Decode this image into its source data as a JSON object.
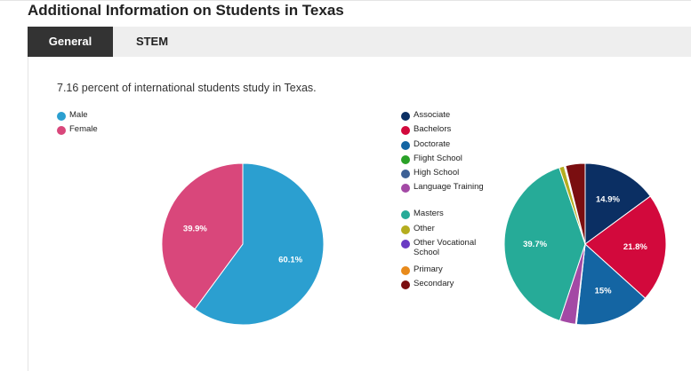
{
  "header": {
    "title": "Additional Information on Students in Texas"
  },
  "tabs": [
    {
      "label": "General",
      "active": true
    },
    {
      "label": "STEM",
      "active": false
    }
  ],
  "summary": "7.16 percent of international students study in Texas.",
  "chart_data": [
    {
      "type": "pie",
      "categories": [
        "Male",
        "Female"
      ],
      "values": [
        60.1,
        39.9
      ],
      "data_labels": [
        "60.1%",
        "39.9%"
      ],
      "colors": [
        "#2b9fd0",
        "#d9477b"
      ],
      "legend": "top-left"
    },
    {
      "type": "pie",
      "categories": [
        "Associate",
        "Bachelors",
        "Doctorate",
        "Flight School",
        "High School",
        "Language Training",
        "Masters",
        "Other",
        "Other Vocational School",
        "Primary",
        "Secondary"
      ],
      "values": [
        14.9,
        21.8,
        15,
        0.1,
        0.1,
        3.2,
        39.7,
        1,
        0.2,
        0.1,
        3.9
      ],
      "data_labels": [
        "14.9%",
        "21.8%",
        "15%",
        "",
        "",
        "",
        "39.7%",
        "",
        "",
        "",
        ""
      ],
      "colors": [
        "#0b2f63",
        "#d2093c",
        "#1465a3",
        "#2aa128",
        "#3d6095",
        "#a349a5",
        "#26ab98",
        "#b5ad1f",
        "#6a3bc3",
        "#e88a1b",
        "#7a0e10"
      ],
      "legend": "left"
    }
  ]
}
